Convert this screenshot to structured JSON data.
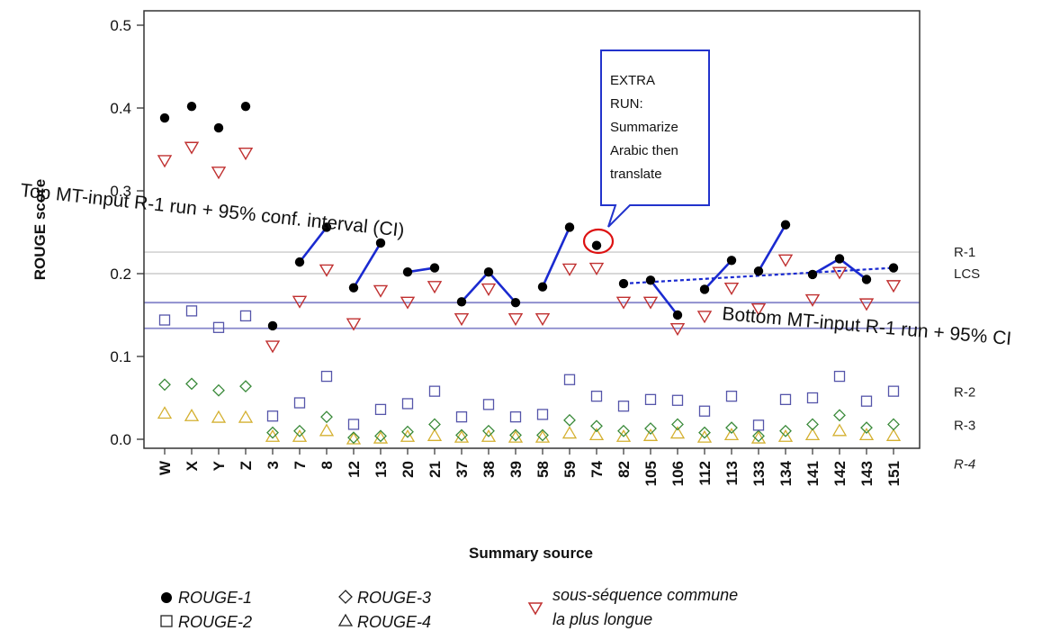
{
  "chart_data": {
    "type": "scatter",
    "xlabel": "Summary source",
    "ylabel": "ROUGE score",
    "ylim": [
      0,
      0.5
    ],
    "yticks": [
      "0.0",
      "0.1",
      "0.2",
      "0.3",
      "0.4",
      "0.5"
    ],
    "categories": [
      "W",
      "X",
      "Y",
      "Z",
      "3",
      "7",
      "8",
      "12",
      "13",
      "20",
      "21",
      "37",
      "38",
      "39",
      "58",
      "59",
      "74",
      "82",
      "105",
      "106",
      "112",
      "113",
      "133",
      "134",
      "141",
      "142",
      "143",
      "151"
    ],
    "series": [
      {
        "name": "ROUGE-1",
        "marker": "filled-circle",
        "color": "#000000",
        "values": [
          0.388,
          0.402,
          0.376,
          0.402,
          0.137,
          0.214,
          0.256,
          0.183,
          0.237,
          0.202,
          0.207,
          0.166,
          0.202,
          0.165,
          0.184,
          0.256,
          0.234,
          0.188,
          0.192,
          0.15,
          0.181,
          0.216,
          0.203,
          0.259,
          0.199,
          0.218,
          0.193,
          0.207
        ]
      },
      {
        "name": "ROUGE-2",
        "marker": "open-square",
        "color": "#5555aa",
        "values": [
          0.144,
          0.155,
          0.135,
          0.149,
          0.028,
          0.044,
          0.076,
          0.018,
          0.036,
          0.043,
          0.058,
          0.027,
          0.042,
          0.027,
          0.03,
          0.072,
          0.052,
          0.04,
          0.048,
          0.047,
          0.034,
          0.052,
          0.017,
          0.048,
          0.05,
          0.076,
          0.046,
          0.058
        ]
      },
      {
        "name": "ROUGE-3",
        "marker": "open-diamond",
        "color": "#3a8a3a",
        "values": [
          0.066,
          0.067,
          0.059,
          0.064,
          0.008,
          0.01,
          0.027,
          0.002,
          0.004,
          0.009,
          0.018,
          0.005,
          0.01,
          0.005,
          0.005,
          0.023,
          0.016,
          0.01,
          0.013,
          0.018,
          0.008,
          0.014,
          0.004,
          0.01,
          0.018,
          0.029,
          0.014,
          0.018
        ]
      },
      {
        "name": "ROUGE-4",
        "marker": "open-triangle-up",
        "color": "#d4b030",
        "values": [
          0.031,
          0.028,
          0.026,
          0.026,
          0.003,
          0.003,
          0.01,
          0.0,
          0.001,
          0.003,
          0.004,
          0.002,
          0.003,
          0.002,
          0.002,
          0.007,
          0.005,
          0.003,
          0.004,
          0.007,
          0.002,
          0.005,
          0.001,
          0.003,
          0.005,
          0.01,
          0.005,
          0.004
        ]
      },
      {
        "name": "sous-séquence commune la plus longue",
        "marker": "open-triangle-down",
        "color": "#c03030",
        "values": [
          0.337,
          0.353,
          0.323,
          0.346,
          0.113,
          0.167,
          0.205,
          0.14,
          0.18,
          0.166,
          0.185,
          0.146,
          0.182,
          0.146,
          0.146,
          0.206,
          0.207,
          0.166,
          0.166,
          0.134,
          0.149,
          0.183,
          0.158,
          0.217,
          0.169,
          0.202,
          0.164,
          0.186
        ]
      }
    ],
    "pair_links": [
      {
        "from": "7",
        "to": "8"
      },
      {
        "from": "12",
        "to": "13"
      },
      {
        "from": "20",
        "to": "21"
      },
      {
        "from": "37",
        "to": "38"
      },
      {
        "from": "38",
        "to": "39"
      },
      {
        "from": "58",
        "to": "59"
      },
      {
        "from": "105",
        "to": "106"
      },
      {
        "from": "112",
        "to": "113"
      },
      {
        "from": "133",
        "to": "134"
      },
      {
        "from": "141",
        "to": "142"
      },
      {
        "from": "142",
        "to": "143"
      }
    ],
    "dashed_link": {
      "from": "82",
      "to": "151"
    },
    "reference_lines": [
      {
        "label": "R-1",
        "y": 0.226,
        "color": "#cccccc"
      },
      {
        "label": "LCS",
        "y": 0.2,
        "color": "#cccccc"
      },
      {
        "label": "",
        "y": 0.165,
        "color": "#8888cc"
      },
      {
        "label": "",
        "y": 0.134,
        "color": "#8888cc"
      },
      {
        "label": "R-2",
        "y": 0.057
      },
      {
        "label": "R-3",
        "y": 0.017
      },
      {
        "label": "R-4",
        "y": -0.03
      }
    ],
    "annotations": {
      "top": "Top MT-input R-1 run + 95% conf. interval (CI)",
      "bottom": "Bottom MT-input R-1 run + 95% CI",
      "callout_lines": [
        "EXTRA",
        "RUN:",
        "Summarize",
        "Arabic then",
        "translate"
      ],
      "callout_target": "74"
    },
    "legend": {
      "placement": "bottom",
      "items": [
        "ROUGE-1",
        "ROUGE-2",
        "ROUGE-3",
        "ROUGE-4"
      ],
      "lcs_lines": [
        "sous-séquence commune",
        "la plus longue"
      ]
    }
  }
}
